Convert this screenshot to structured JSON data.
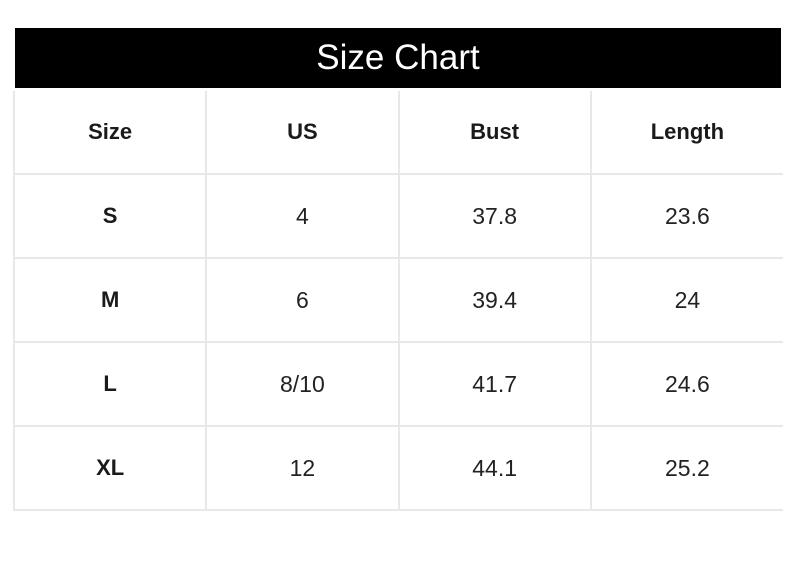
{
  "title": "Size Chart",
  "headers": [
    "Size",
    "US",
    "Bust",
    "Length"
  ],
  "rows": [
    [
      "S",
      "4",
      "37.8",
      "23.6"
    ],
    [
      "M",
      "6",
      "39.4",
      "24"
    ],
    [
      "L",
      "8/10",
      "41.7",
      "24.6"
    ],
    [
      "XL",
      "12",
      "44.1",
      "25.2"
    ]
  ]
}
